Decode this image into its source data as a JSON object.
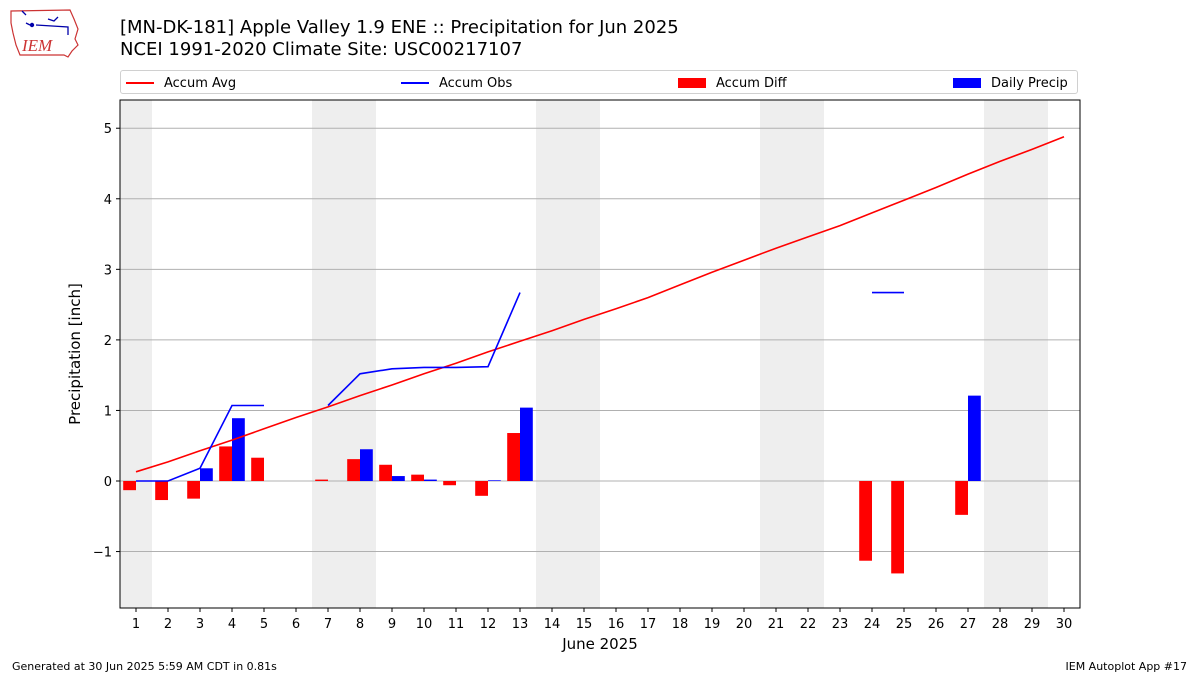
{
  "header": {
    "title_line1": "[MN-DK-181] Apple Valley 1.9 ENE :: Precipitation for Jun 2025",
    "title_line2": "NCEI 1991-2020 Climate Site: USC00217107",
    "logo_text": "IEM"
  },
  "legend": {
    "accum_avg": "Accum Avg",
    "accum_obs": "Accum Obs",
    "accum_diff": "Accum Diff",
    "daily_precip": "Daily Precip"
  },
  "footer": {
    "generated": "Generated at 30 Jun 2025 5:59 AM CDT in 0.81s",
    "app": "IEM Autoplot App #17"
  },
  "colors": {
    "avg": "#ff0000",
    "obs": "#0000ff",
    "diff": "#ff0000",
    "daily": "#0000ff",
    "weekend_band": "#eeeeee",
    "grid": "#b0b0b0"
  },
  "chart_data": {
    "type": "bar",
    "xlabel": "June 2025",
    "ylabel": "Precipitation [inch]",
    "xlim": [
      0.5,
      30.5
    ],
    "ylim": [
      -1.8,
      5.4
    ],
    "yticks": [
      -1,
      0,
      1,
      2,
      3,
      4,
      5
    ],
    "ytick_labels": [
      "−1",
      "0",
      "1",
      "2",
      "3",
      "4",
      "5"
    ],
    "x": [
      1,
      2,
      3,
      4,
      5,
      6,
      7,
      8,
      9,
      10,
      11,
      12,
      13,
      14,
      15,
      16,
      17,
      18,
      19,
      20,
      21,
      22,
      23,
      24,
      25,
      26,
      27,
      28,
      29,
      30
    ],
    "weekend_days": [
      1,
      7,
      8,
      14,
      15,
      21,
      22,
      28,
      29
    ],
    "grid": "horizontal",
    "series": [
      {
        "name": "Accum Avg",
        "kind": "line",
        "values": [
          0.13,
          0.27,
          0.43,
          0.58,
          0.74,
          0.9,
          1.05,
          1.21,
          1.36,
          1.52,
          1.67,
          1.83,
          1.98,
          2.13,
          2.29,
          2.44,
          2.6,
          2.78,
          2.96,
          3.13,
          3.3,
          3.46,
          3.62,
          3.8,
          3.98,
          4.16,
          4.35,
          4.53,
          4.7,
          4.88
        ]
      },
      {
        "name": "Accum Obs",
        "kind": "line",
        "values": [
          0.0,
          0.0,
          0.18,
          1.07,
          1.07,
          null,
          1.07,
          1.52,
          1.59,
          1.61,
          1.61,
          1.62,
          2.67,
          null,
          null,
          null,
          null,
          null,
          null,
          null,
          null,
          null,
          null,
          2.67,
          2.67,
          null,
          null,
          null,
          null,
          null
        ]
      },
      {
        "name": "Accum Diff",
        "kind": "bar",
        "values": [
          -0.13,
          -0.27,
          -0.25,
          0.49,
          0.33,
          null,
          0.02,
          0.31,
          0.23,
          0.09,
          -0.06,
          -0.21,
          0.68,
          null,
          null,
          null,
          null,
          null,
          null,
          null,
          null,
          null,
          null,
          -1.13,
          -1.31,
          null,
          -0.48,
          null,
          null,
          null
        ]
      },
      {
        "name": "Daily Precip",
        "kind": "bar",
        "values": [
          0.0,
          0.0,
          0.18,
          0.89,
          null,
          null,
          null,
          0.45,
          0.07,
          0.02,
          null,
          0.01,
          1.04,
          null,
          null,
          null,
          null,
          null,
          null,
          null,
          null,
          null,
          null,
          null,
          null,
          null,
          1.21,
          null,
          null,
          null
        ]
      }
    ]
  }
}
